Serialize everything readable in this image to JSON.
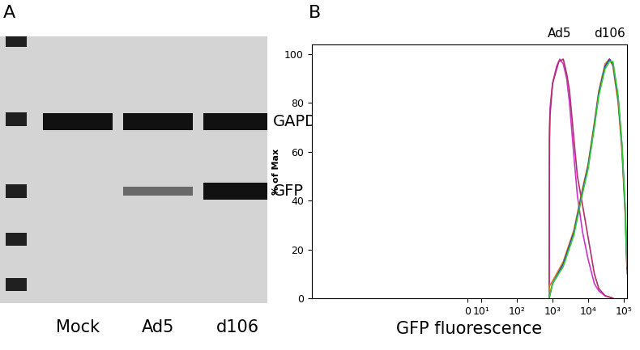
{
  "chart_data": [
    {
      "type": "western_blot",
      "panel": "A",
      "lanes": [
        "Mock",
        "Ad5",
        "d106"
      ],
      "bands": [
        {
          "name": "GAPDH",
          "values": [
            1.0,
            1.0,
            1.0
          ]
        },
        {
          "name": "GFP",
          "values": [
            0.0,
            0.3,
            1.0
          ]
        }
      ]
    },
    {
      "type": "line",
      "panel": "B",
      "x_label": "GFP fluorescence",
      "y_label": "% of Max",
      "log": "x",
      "xlim": [
        -100000,
        126000
      ],
      "xticks": [
        0,
        {
          "value": 10,
          "label": "10¹"
        },
        {
          "value": 100,
          "label": "10²"
        },
        {
          "value": 1000,
          "label": "10³"
        },
        {
          "value": 10000,
          "label": "10⁴"
        },
        {
          "value": 100000,
          "label": "10⁵"
        }
      ],
      "ylim": [
        0,
        104
      ],
      "yticks": [
        0,
        20,
        40,
        60,
        80,
        100
      ],
      "series": [
        {
          "group": "Ad5",
          "color": "#cc33cc",
          "x": [
            800,
            820,
            850,
            1000,
            1300,
            1600,
            2000,
            2500,
            3000,
            4000,
            5000,
            7000,
            10000,
            15000,
            20000,
            30000,
            50000
          ],
          "values": [
            0,
            70,
            78,
            88,
            95,
            98,
            96,
            90,
            80,
            58,
            42,
            27,
            16,
            6,
            3,
            1,
            0
          ]
        },
        {
          "group": "Ad5",
          "color": "#b0306a",
          "x": [
            800,
            820,
            850,
            1000,
            1500,
            2000,
            2500,
            3000,
            4000,
            5000,
            7000,
            10000,
            15000,
            20000,
            30000,
            50000
          ],
          "values": [
            0,
            65,
            75,
            88,
            97,
            98,
            92,
            85,
            65,
            50,
            38,
            25,
            10,
            4,
            1,
            0
          ]
        },
        {
          "group": "d106",
          "color": "#e07a20",
          "x": [
            800,
            820,
            1000,
            2000,
            4000,
            7000,
            10000,
            15000,
            20000,
            30000,
            40000,
            50000,
            70000,
            90000,
            110000,
            125000
          ],
          "values": [
            0,
            5,
            7,
            15,
            28,
            45,
            55,
            72,
            85,
            96,
            98,
            95,
            80,
            60,
            35,
            10
          ]
        },
        {
          "group": "d106",
          "color": "#1f3fbf",
          "x": [
            800,
            1000,
            2000,
            4000,
            7000,
            10000,
            15000,
            20000,
            30000,
            40000,
            50000,
            70000,
            90000,
            110000,
            125000
          ],
          "values": [
            0,
            6,
            14,
            27,
            44,
            54,
            71,
            84,
            95,
            98,
            96,
            82,
            62,
            37,
            12
          ]
        },
        {
          "group": "d106",
          "color": "#33cc33",
          "x": [
            800,
            1000,
            2000,
            4000,
            7000,
            10000,
            15000,
            20000,
            30000,
            40000,
            50000,
            70000,
            90000,
            110000,
            125000
          ],
          "values": [
            0,
            6,
            13,
            26,
            43,
            53,
            70,
            83,
            94,
            97,
            97,
            83,
            63,
            38,
            13
          ]
        }
      ]
    }
  ]
}
